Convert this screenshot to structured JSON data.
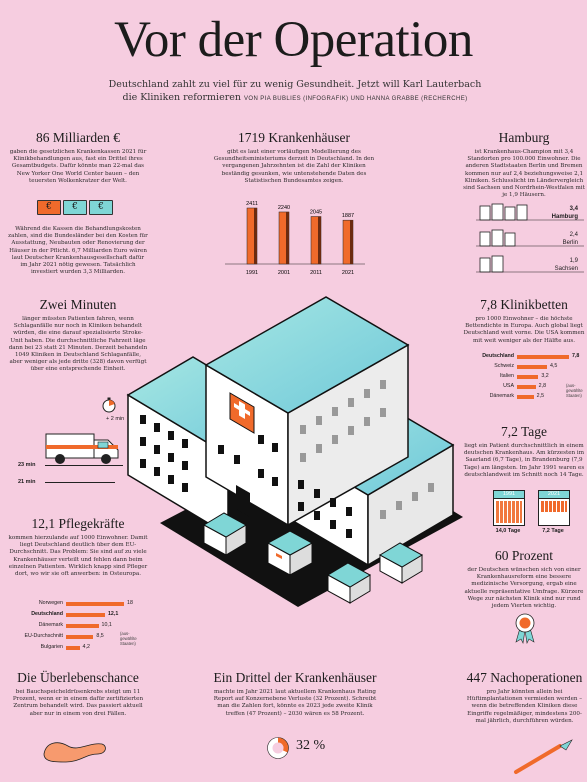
{
  "header": {
    "title": "Vor der Operation",
    "subtitle_1": "Deutschland zahlt zu viel für zu wenig Gesundheit. Jetzt will Karl Lauterbach",
    "subtitle_2": "die Kliniken reformieren",
    "credit": "VON PIA BUBLIES (INFOGRAFIK) UND HANNA GRABBE (RECHERCHE)"
  },
  "milliarden": {
    "heading": "86 Milliarden €",
    "text_1": "gaben die gesetzlichen Krankenkassen 2021 für Klinikbehandlungen aus, fast ein Drittel ihres Gesamtbudgets. Dafür könnte man 22-mal das New Yorker One World Center bauen – den teuersten Wolkenkratzer der Welt.",
    "euro_glyph": "€",
    "text_2": "Während die Kassen die Behandlungskosten zahlen, sind die Bundesländer bei den Kosten für Ausstattung, Neubauten oder Renovierung der Häuser in der Pflicht. 6,7 Milliarden Euro wären laut Deutscher Krankenhausgesellschaft dafür im Jahr 2021 nötig gewesen. Tatsächlich investiert wurden 3,3 Milliarden."
  },
  "krankenhaeuser": {
    "heading": "1719 Krankenhäuser",
    "text": "gibt es laut einer vorläufigen Modellierung des Gesundheitsministeriums derzeit in Deutschland. In den vergangenen Jahrzehnten ist die Zahl der Kliniken beständig gesunken, wie untenstehende Daten des Statistischen Bundesamtes zeigen."
  },
  "chart_data": [
    {
      "type": "bar",
      "categories": [
        "1991",
        "2001",
        "2011",
        "2021"
      ],
      "values": [
        2411,
        2240,
        2045,
        1887
      ],
      "ylim": [
        0,
        2411
      ]
    },
    {
      "type": "bar",
      "categories": [
        "Deutschland",
        "Schweiz",
        "Italien",
        "USA",
        "Dänemark"
      ],
      "values": [
        7.8,
        4.5,
        3.2,
        2.8,
        2.5
      ]
    },
    {
      "type": "bar",
      "categories": [
        "Norwegen",
        "Deutschland",
        "Dänemark",
        "EU-Durchschnitt",
        "Bulgarien"
      ],
      "values": [
        18,
        12.1,
        10.1,
        8.5,
        4.2
      ]
    }
  ],
  "hamburg": {
    "heading": "Hamburg",
    "text": "ist Krankenhaus-Champion mit 3,4 Standorten pro 100.000 Einwohner. Die anderen Stadtstaaten Berlin und Bremen kommen nur auf 2,4 beziehungsweise 2,1 Kliniken. Schlusslicht im Ländervergleich sind Sachsen und Nordrhein-Westfalen mit je 1,9 Häusern.",
    "rows": [
      {
        "value": "3,4",
        "label": "Hamburg"
      },
      {
        "value": "2,4",
        "label": "Berlin"
      },
      {
        "value": "1,9",
        "label": "Sachsen"
      }
    ]
  },
  "minuten": {
    "heading": "Zwei Minuten",
    "text": "länger müssten Patienten fahren, wenn Schlaganfälle nur noch in Kliniken behandelt würden, die eine darauf spezialisierte Stroke-Unit haben. Die durchschnittliche Fahrzeit läge dann bei 23 statt 21 Minuten. Derzeit behandeln 1049 Kliniken in Deutschland Schlaganfälle, aber weniger als jede dritte (328) davon verfügt über eine entsprechende Einheit.",
    "plus": "+ 2 min",
    "t23": "23 min",
    "t21": "21 min"
  },
  "klinikbetten": {
    "heading": "7,8 Klinikbetten",
    "text": "pro 1000 Einwohner – die höchste Bettendichte in Europa. Auch global liegt Deutschland weit vorne. Die USA kommen mit weit weniger als der Hälfte aus.",
    "labels": [
      "Deutschland",
      "Schweiz",
      "Italien",
      "USA",
      "Dänemark"
    ],
    "values": [
      "7,8",
      "4,5",
      "3,2",
      "2,8",
      "2,5"
    ],
    "note": "(aus-gewählte Staaten)"
  },
  "tage": {
    "heading": "7,2 Tage",
    "text": "liegt ein Patient durchschnittlich in einem deutschen Krankenhaus. Am kürzesten im Saarland (6,7 Tage), in Brandenburg (7,9 Tage) am längsten. Im Jahr 1991 waren es deutschlandweit im Schnitt noch 14 Tage.",
    "cal_1_year": "1991",
    "cal_1_label": "14,0 Tage",
    "cal_2_year": "2021",
    "cal_2_label": "7,2 Tage"
  },
  "pflege": {
    "heading": "12,1 Pflegekräfte",
    "text": "kommen hierzulande auf 1000 Einwohner. Damit liegt Deutschland deutlich über dem EU-Durchschnitt. Das Problem: Sie sind auf zu viele Krankenhäuser verteilt und fehlen dann beim einzelnen Patienten. Wirklich knapp sind Pfleger dort, wo wir sie oft anwerben: in Osteuropa.",
    "labels": [
      "Norwegen",
      "Deutschland",
      "Dänemark",
      "EU-Durchschnitt",
      "Bulgarien"
    ],
    "values": [
      "18",
      "12,1",
      "10,1",
      "8,5",
      "4,2"
    ],
    "note": "(aus-gewählte Staaten)"
  },
  "prozent60": {
    "heading": "60 Prozent",
    "text": "der Deutschen wünschen sich von einer Krankenhausreform eine bessere medizinische Versorgung, ergab eine aktuelle repräsentative Umfrage. Kürzere Wege zur nächsten Klinik sind nur rund jedem Vierten wichtig."
  },
  "ueberleben": {
    "heading": "Die Überlebenschance",
    "text": "bei Bauchspeicheldrüsenkrebs steigt um 11 Prozent, wenn er in einem dafür zertifizierten Zentrum behandelt wird. Das passiert aktuell aber nur in einem von drei Fällen."
  },
  "drittel": {
    "heading": "Ein Drittel der Krankenhäuser",
    "text": "machte im Jahr 2021 laut aktuellem Krankenhaus Rating Report auf Konzernebene Verluste (32 Prozent). Schreibt man die Zahlen fort, könnte es 2023 jede zweite Klinik treffen (47 Prozent) – 2030 wären es 58 Prozent.",
    "pct": "32 %",
    "pct_value": 32
  },
  "nachop": {
    "heading": "447 Nachoperationen",
    "text": "pro Jahr könnten allein bei Hüftimplantationen vermieden werden – wenn die betreffenden Kliniken diese Eingriffe regelmäßiger, mindestens 200-mal jährlich, durchführen würden."
  },
  "colors": {
    "accent": "#f06a2b",
    "background": "#f6cde0",
    "teal": "#7fd6d6"
  }
}
